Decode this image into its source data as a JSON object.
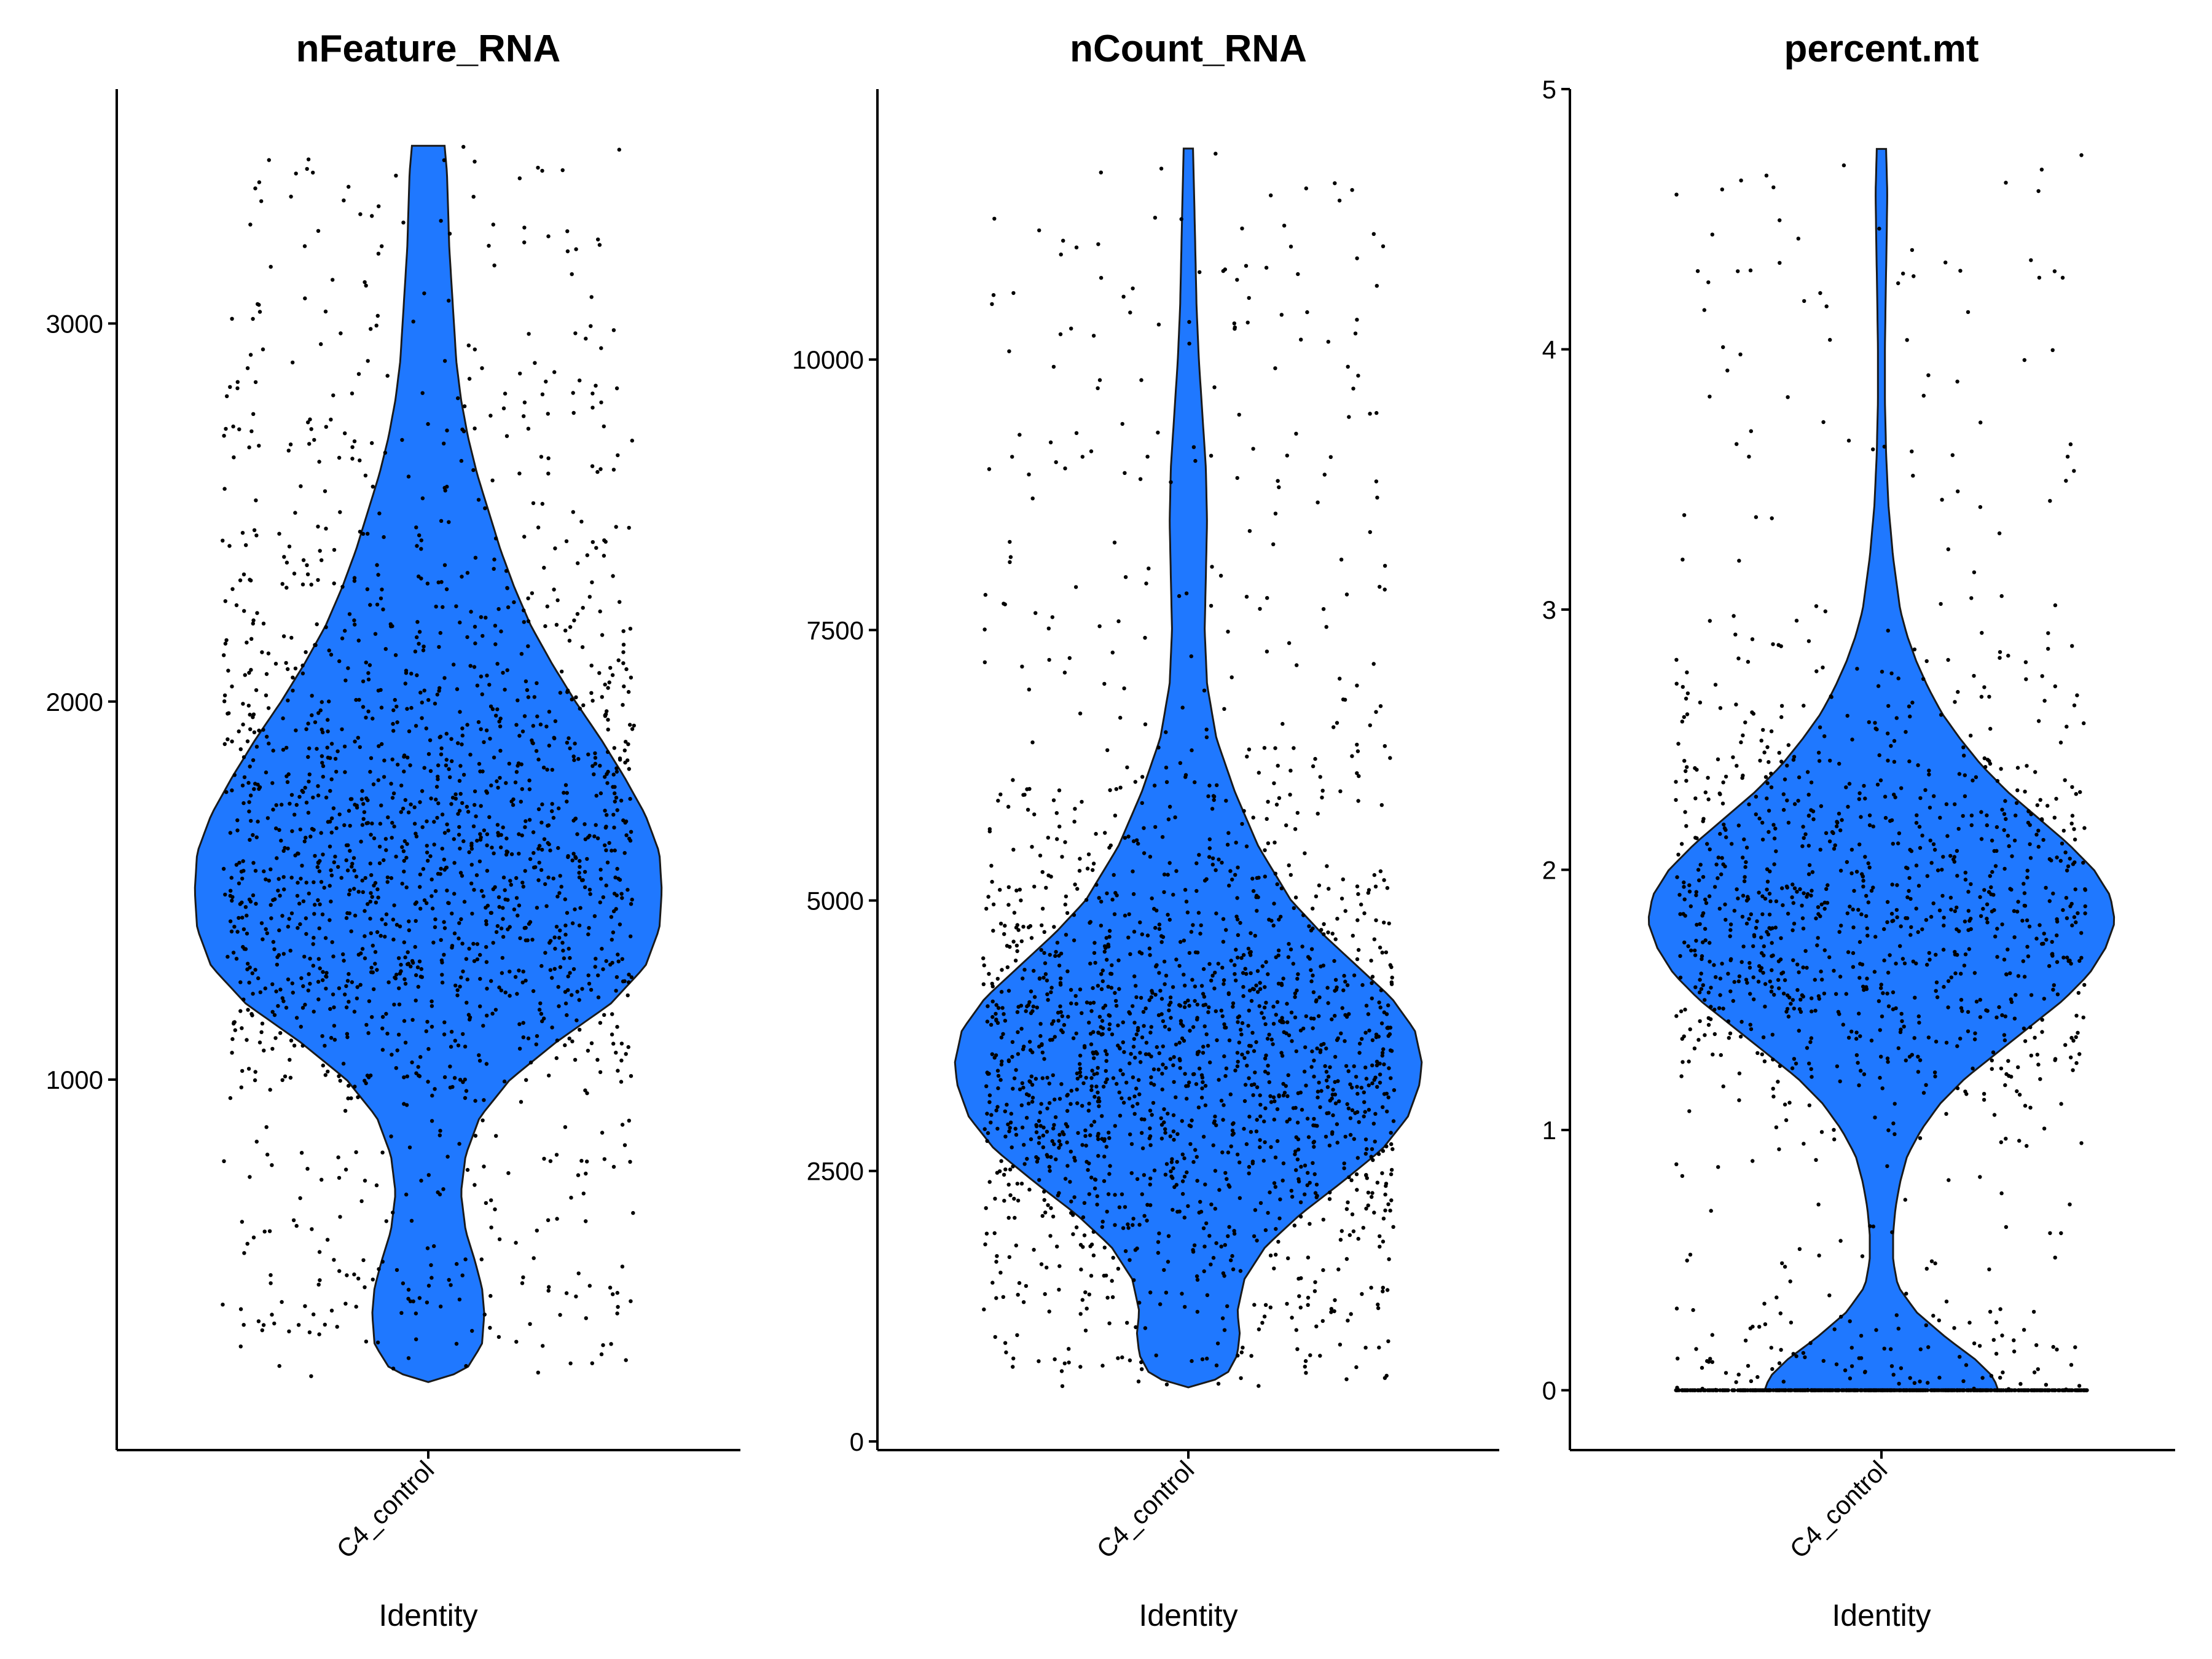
{
  "chart_data": [
    {
      "type": "violin",
      "title": "nFeature_RNA",
      "xlabel": "Identity",
      "ylabel": "",
      "categories": [
        "C4_control"
      ],
      "fill_color": "#1f78ff",
      "point_color": "#000000",
      "ylim": [
        20,
        3620
      ],
      "yticks": [
        1000,
        2000,
        3000
      ],
      "ytick_labels": [
        "1000",
        "2000",
        "3000"
      ],
      "grid": false,
      "legend": "none",
      "data_range": [
        200,
        3470
      ],
      "density_profile": [
        [
          200,
          0.0
        ],
        [
          230,
          0.16
        ],
        [
          300,
          0.23
        ],
        [
          380,
          0.24
        ],
        [
          450,
          0.23
        ],
        [
          520,
          0.2
        ],
        [
          600,
          0.16
        ],
        [
          700,
          0.14
        ],
        [
          800,
          0.16
        ],
        [
          900,
          0.22
        ],
        [
          1000,
          0.35
        ],
        [
          1100,
          0.55
        ],
        [
          1200,
          0.78
        ],
        [
          1300,
          0.93
        ],
        [
          1400,
          0.99
        ],
        [
          1500,
          1.0
        ],
        [
          1600,
          0.99
        ],
        [
          1700,
          0.93
        ],
        [
          1800,
          0.84
        ],
        [
          1900,
          0.74
        ],
        [
          2000,
          0.63
        ],
        [
          2100,
          0.53
        ],
        [
          2200,
          0.44
        ],
        [
          2300,
          0.37
        ],
        [
          2400,
          0.31
        ],
        [
          2500,
          0.26
        ],
        [
          2600,
          0.21
        ],
        [
          2700,
          0.17
        ],
        [
          2800,
          0.14
        ],
        [
          2900,
          0.12
        ],
        [
          3000,
          0.11
        ],
        [
          3100,
          0.1
        ],
        [
          3200,
          0.09
        ],
        [
          3300,
          0.085
        ],
        [
          3400,
          0.08
        ],
        [
          3470,
          0.07
        ]
      ],
      "n_points": 1800
    },
    {
      "type": "violin",
      "title": "nCount_RNA",
      "xlabel": "Identity",
      "ylabel": "",
      "categories": [
        "C4_control"
      ],
      "fill_color": "#1f78ff",
      "point_color": "#000000",
      "ylim": [
        -80,
        12500
      ],
      "yticks": [
        0,
        2500,
        5000,
        7500,
        10000
      ],
      "ytick_labels": [
        "0",
        "2500",
        "5000",
        "7500",
        "10000"
      ],
      "grid": false,
      "legend": "none",
      "data_range": [
        500,
        11950
      ],
      "density_profile": [
        [
          500,
          0.0
        ],
        [
          600,
          0.16
        ],
        [
          800,
          0.21
        ],
        [
          1000,
          0.22
        ],
        [
          1200,
          0.21
        ],
        [
          1500,
          0.24
        ],
        [
          1800,
          0.33
        ],
        [
          2100,
          0.48
        ],
        [
          2400,
          0.66
        ],
        [
          2700,
          0.83
        ],
        [
          3000,
          0.94
        ],
        [
          3300,
          0.99
        ],
        [
          3500,
          1.0
        ],
        [
          3800,
          0.97
        ],
        [
          4100,
          0.87
        ],
        [
          4400,
          0.72
        ],
        [
          4700,
          0.57
        ],
        [
          5000,
          0.44
        ],
        [
          5500,
          0.3
        ],
        [
          6000,
          0.2
        ],
        [
          6500,
          0.12
        ],
        [
          7000,
          0.08
        ],
        [
          7500,
          0.07
        ],
        [
          8000,
          0.075
        ],
        [
          8500,
          0.08
        ],
        [
          9000,
          0.075
        ],
        [
          9500,
          0.06
        ],
        [
          10000,
          0.045
        ],
        [
          10500,
          0.035
        ],
        [
          11000,
          0.03
        ],
        [
          11500,
          0.025
        ],
        [
          11950,
          0.02
        ]
      ],
      "n_points": 1800
    },
    {
      "type": "violin",
      "title": "percent.mt",
      "xlabel": "Identity",
      "ylabel": "",
      "categories": [
        "C4_control"
      ],
      "fill_color": "#1f78ff",
      "point_color": "#000000",
      "ylim": [
        -0.23,
        5.0
      ],
      "yticks": [
        0,
        1,
        2,
        3,
        4,
        5
      ],
      "ytick_labels": [
        "0",
        "1",
        "2",
        "3",
        "4",
        "5"
      ],
      "grid": false,
      "legend": "none",
      "data_range": [
        0,
        4.77
      ],
      "density_profile": [
        [
          0.0,
          0.5
        ],
        [
          0.05,
          0.48
        ],
        [
          0.12,
          0.4
        ],
        [
          0.2,
          0.28
        ],
        [
          0.3,
          0.15
        ],
        [
          0.4,
          0.07
        ],
        [
          0.5,
          0.05
        ],
        [
          0.6,
          0.05
        ],
        [
          0.7,
          0.06
        ],
        [
          0.8,
          0.08
        ],
        [
          0.9,
          0.11
        ],
        [
          1.0,
          0.17
        ],
        [
          1.1,
          0.25
        ],
        [
          1.2,
          0.36
        ],
        [
          1.3,
          0.5
        ],
        [
          1.4,
          0.64
        ],
        [
          1.5,
          0.78
        ],
        [
          1.6,
          0.89
        ],
        [
          1.7,
          0.96
        ],
        [
          1.8,
          1.0
        ],
        [
          1.9,
          0.98
        ],
        [
          2.0,
          0.91
        ],
        [
          2.1,
          0.8
        ],
        [
          2.2,
          0.67
        ],
        [
          2.3,
          0.54
        ],
        [
          2.4,
          0.43
        ],
        [
          2.5,
          0.34
        ],
        [
          2.6,
          0.26
        ],
        [
          2.7,
          0.2
        ],
        [
          2.8,
          0.15
        ],
        [
          2.9,
          0.11
        ],
        [
          3.0,
          0.08
        ],
        [
          3.2,
          0.05
        ],
        [
          3.4,
          0.03
        ],
        [
          3.6,
          0.02
        ],
        [
          3.8,
          0.015
        ],
        [
          4.0,
          0.015
        ],
        [
          4.2,
          0.018
        ],
        [
          4.4,
          0.022
        ],
        [
          4.6,
          0.025
        ],
        [
          4.77,
          0.02
        ]
      ],
      "n_points": 1800
    }
  ]
}
